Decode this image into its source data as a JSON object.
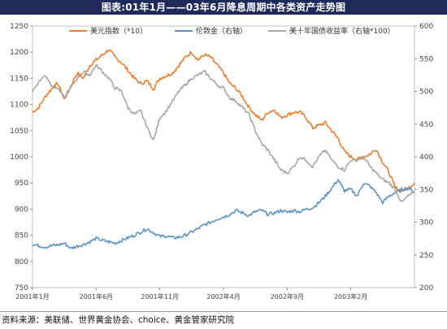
{
  "header": {
    "title": "图表:01年1月——03年6月降息周期中各类资产走势图"
  },
  "footer": {
    "source": "资料来源：美联储、世界黄金协会、choice、黄金管家研究院"
  },
  "chart_data": {
    "type": "line",
    "xlabel": "",
    "ylabel": "",
    "x_tick_labels": [
      "2001年1月",
      "2001年6月",
      "2001年11月",
      "2002年4月",
      "2002年9月",
      "2003年2月"
    ],
    "x_tick_months": [
      0,
      5,
      10,
      15,
      20,
      25
    ],
    "x_range_months": [
      0,
      30
    ],
    "left_axis": {
      "ylim": [
        750,
        1250
      ],
      "ticks": [
        750,
        800,
        850,
        900,
        950,
        1000,
        1050,
        1100,
        1150,
        1200,
        1250
      ]
    },
    "right_axis": {
      "ylim": [
        200,
        600
      ],
      "ticks": [
        200,
        250,
        300,
        350,
        400,
        450,
        500,
        550,
        600
      ]
    },
    "grid": false,
    "legend_position": "top",
    "series": [
      {
        "name": "美元指数（*10）",
        "axis": "left",
        "color": "#ee7d2b",
        "x_months": [
          0,
          0.5,
          1,
          1.5,
          2,
          2.5,
          3,
          3.5,
          4,
          4.5,
          5,
          5.5,
          6,
          6.5,
          7,
          7.5,
          8,
          8.5,
          9,
          9.5,
          10,
          10.5,
          11,
          11.5,
          12,
          12.5,
          13,
          13.5,
          14,
          14.5,
          15,
          15.5,
          16,
          16.5,
          17,
          17.5,
          18,
          18.5,
          19,
          19.5,
          20,
          20.5,
          21,
          21.5,
          22,
          22.5,
          23,
          23.5,
          24,
          24.5,
          25,
          25.5,
          26,
          26.5,
          27,
          27.5,
          28,
          28.5,
          29,
          29.5,
          30
        ],
        "values": [
          1085,
          1095,
          1115,
          1130,
          1140,
          1110,
          1135,
          1160,
          1150,
          1175,
          1185,
          1195,
          1205,
          1190,
          1180,
          1165,
          1150,
          1140,
          1145,
          1130,
          1150,
          1155,
          1160,
          1175,
          1190,
          1200,
          1185,
          1195,
          1190,
          1175,
          1160,
          1140,
          1130,
          1115,
          1095,
          1080,
          1070,
          1085,
          1090,
          1075,
          1080,
          1085,
          1085,
          1075,
          1055,
          1060,
          1065,
          1050,
          1035,
          1010,
          1000,
          995,
          1000,
          1005,
          1015,
          990,
          970,
          940,
          935,
          940,
          950
        ]
      },
      {
        "name": "伦敦金（右轴）",
        "axis": "right",
        "color": "#5b93c7",
        "x_months": [
          0,
          0.5,
          1,
          1.5,
          2,
          2.5,
          3,
          3.5,
          4,
          4.5,
          5,
          5.5,
          6,
          6.5,
          7,
          7.5,
          8,
          8.5,
          9,
          9.5,
          10,
          10.5,
          11,
          11.5,
          12,
          12.5,
          13,
          13.5,
          14,
          14.5,
          15,
          15.5,
          16,
          16.5,
          17,
          17.5,
          18,
          18.5,
          19,
          19.5,
          20,
          20.5,
          21,
          21.5,
          22,
          22.5,
          23,
          23.5,
          24,
          24.5,
          25,
          25.5,
          26,
          26.5,
          27,
          27.5,
          28,
          28.5,
          29,
          29.5,
          30
        ],
        "values": [
          266,
          264,
          262,
          264,
          265,
          268,
          260,
          263,
          266,
          270,
          275,
          272,
          270,
          268,
          272,
          276,
          280,
          285,
          290,
          284,
          278,
          279,
          276,
          277,
          280,
          285,
          290,
          296,
          300,
          305,
          308,
          312,
          318,
          314,
          310,
          316,
          318,
          312,
          314,
          318,
          315,
          318,
          316,
          320,
          322,
          330,
          340,
          352,
          365,
          348,
          350,
          340,
          360,
          355,
          345,
          330,
          340,
          345,
          350,
          352,
          346
        ]
      },
      {
        "name": "美十年国债收益率（右轴*100）",
        "axis": "right",
        "color": "#a6a6a6",
        "x_months": [
          0,
          0.5,
          1,
          1.5,
          2,
          2.5,
          3,
          3.5,
          4,
          4.5,
          5,
          5.5,
          6,
          6.5,
          7,
          7.5,
          8,
          8.5,
          9,
          9.5,
          10,
          10.5,
          11,
          11.5,
          12,
          12.5,
          13,
          13.5,
          14,
          14.5,
          15,
          15.5,
          16,
          16.5,
          17,
          17.5,
          18,
          18.5,
          19,
          19.5,
          20,
          20.5,
          21,
          21.5,
          22,
          22.5,
          23,
          23.5,
          24,
          24.5,
          25,
          25.5,
          26,
          26.5,
          27,
          27.5,
          28,
          28.5,
          29,
          29.5,
          30
        ],
        "values": [
          500,
          515,
          525,
          510,
          505,
          490,
          505,
          520,
          530,
          525,
          540,
          530,
          520,
          505,
          500,
          475,
          465,
          470,
          445,
          425,
          460,
          470,
          485,
          500,
          510,
          520,
          525,
          530,
          520,
          510,
          505,
          490,
          485,
          475,
          465,
          440,
          420,
          410,
          395,
          380,
          375,
          385,
          400,
          395,
          385,
          400,
          410,
          395,
          385,
          380,
          395,
          395,
          400,
          385,
          375,
          365,
          360,
          350,
          330,
          340,
          345
        ]
      }
    ]
  }
}
